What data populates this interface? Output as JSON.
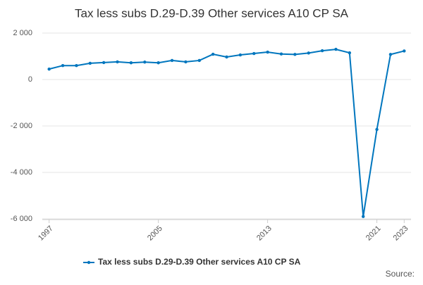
{
  "chart_data": {
    "type": "line",
    "title": "Tax less subs D.29-D.39 Other services A10 CP SA",
    "x": [
      1997,
      1998,
      1999,
      2000,
      2001,
      2002,
      2003,
      2004,
      2005,
      2006,
      2007,
      2008,
      2009,
      2010,
      2011,
      2012,
      2013,
      2014,
      2015,
      2016,
      2017,
      2018,
      2019,
      2020,
      2021,
      2022,
      2023
    ],
    "series": [
      {
        "name": "Tax less subs D.29-D.39 Other services A10 CP SA",
        "color": "#0076be",
        "values": [
          450,
          600,
          600,
          700,
          730,
          760,
          720,
          750,
          720,
          820,
          760,
          820,
          1090,
          970,
          1060,
          1120,
          1180,
          1100,
          1080,
          1140,
          1240,
          1300,
          1150,
          -5900,
          -2150,
          1080,
          1230
        ]
      }
    ],
    "xlim": [
      1996.5,
      2023.5
    ],
    "xticks": [
      1997,
      2005,
      2013,
      2021,
      2023
    ],
    "ylim": [
      -6000,
      2000
    ],
    "yticks": [
      {
        "value": -6000,
        "label": "-6 000"
      },
      {
        "value": -4000,
        "label": "-4 000"
      },
      {
        "value": -2000,
        "label": "-2 000"
      },
      0,
      {
        "value": 2000,
        "label": "2 000"
      }
    ],
    "grid": true,
    "legend": "bottom",
    "source": "Source:"
  }
}
